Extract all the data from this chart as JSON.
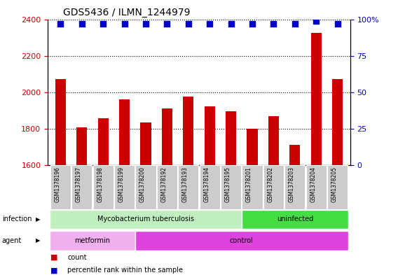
{
  "title": "GDS5436 / ILMN_1244979",
  "samples": [
    "GSM1378196",
    "GSM1378197",
    "GSM1378198",
    "GSM1378199",
    "GSM1378200",
    "GSM1378192",
    "GSM1378193",
    "GSM1378194",
    "GSM1378195",
    "GSM1378201",
    "GSM1378202",
    "GSM1378203",
    "GSM1378204",
    "GSM1378205"
  ],
  "counts": [
    2070,
    1805,
    1855,
    1960,
    1835,
    1910,
    1975,
    1920,
    1895,
    1800,
    1870,
    1710,
    2325,
    2070
  ],
  "percentiles": [
    97,
    97,
    97,
    97,
    97,
    97,
    97,
    97,
    97,
    97,
    97,
    97,
    99,
    97
  ],
  "ylim_left": [
    1600,
    2400
  ],
  "ylim_right": [
    0,
    100
  ],
  "yticks_left": [
    1600,
    1800,
    2000,
    2200,
    2400
  ],
  "yticks_right": [
    0,
    25,
    50,
    75,
    100
  ],
  "bar_color": "#cc0000",
  "dot_color": "#0000cc",
  "bar_width": 0.5,
  "dot_size": 35,
  "infection_groups": [
    {
      "label": "Mycobacterium tuberculosis",
      "start": 0,
      "end": 9,
      "color": "#c0f0c0"
    },
    {
      "label": "uninfected",
      "start": 9,
      "end": 14,
      "color": "#44dd44"
    }
  ],
  "agent_groups": [
    {
      "label": "metformin",
      "start": 0,
      "end": 4,
      "color": "#f0b0f0"
    },
    {
      "label": "control",
      "start": 4,
      "end": 14,
      "color": "#dd44dd"
    }
  ],
  "infection_label": "infection",
  "agent_label": "agent",
  "legend_count_color": "#cc0000",
  "legend_percentile_color": "#0000cc",
  "tick_label_color_left": "#cc0000",
  "tick_label_color_right": "#0000cc",
  "xticklabels_bg": "#cccccc"
}
